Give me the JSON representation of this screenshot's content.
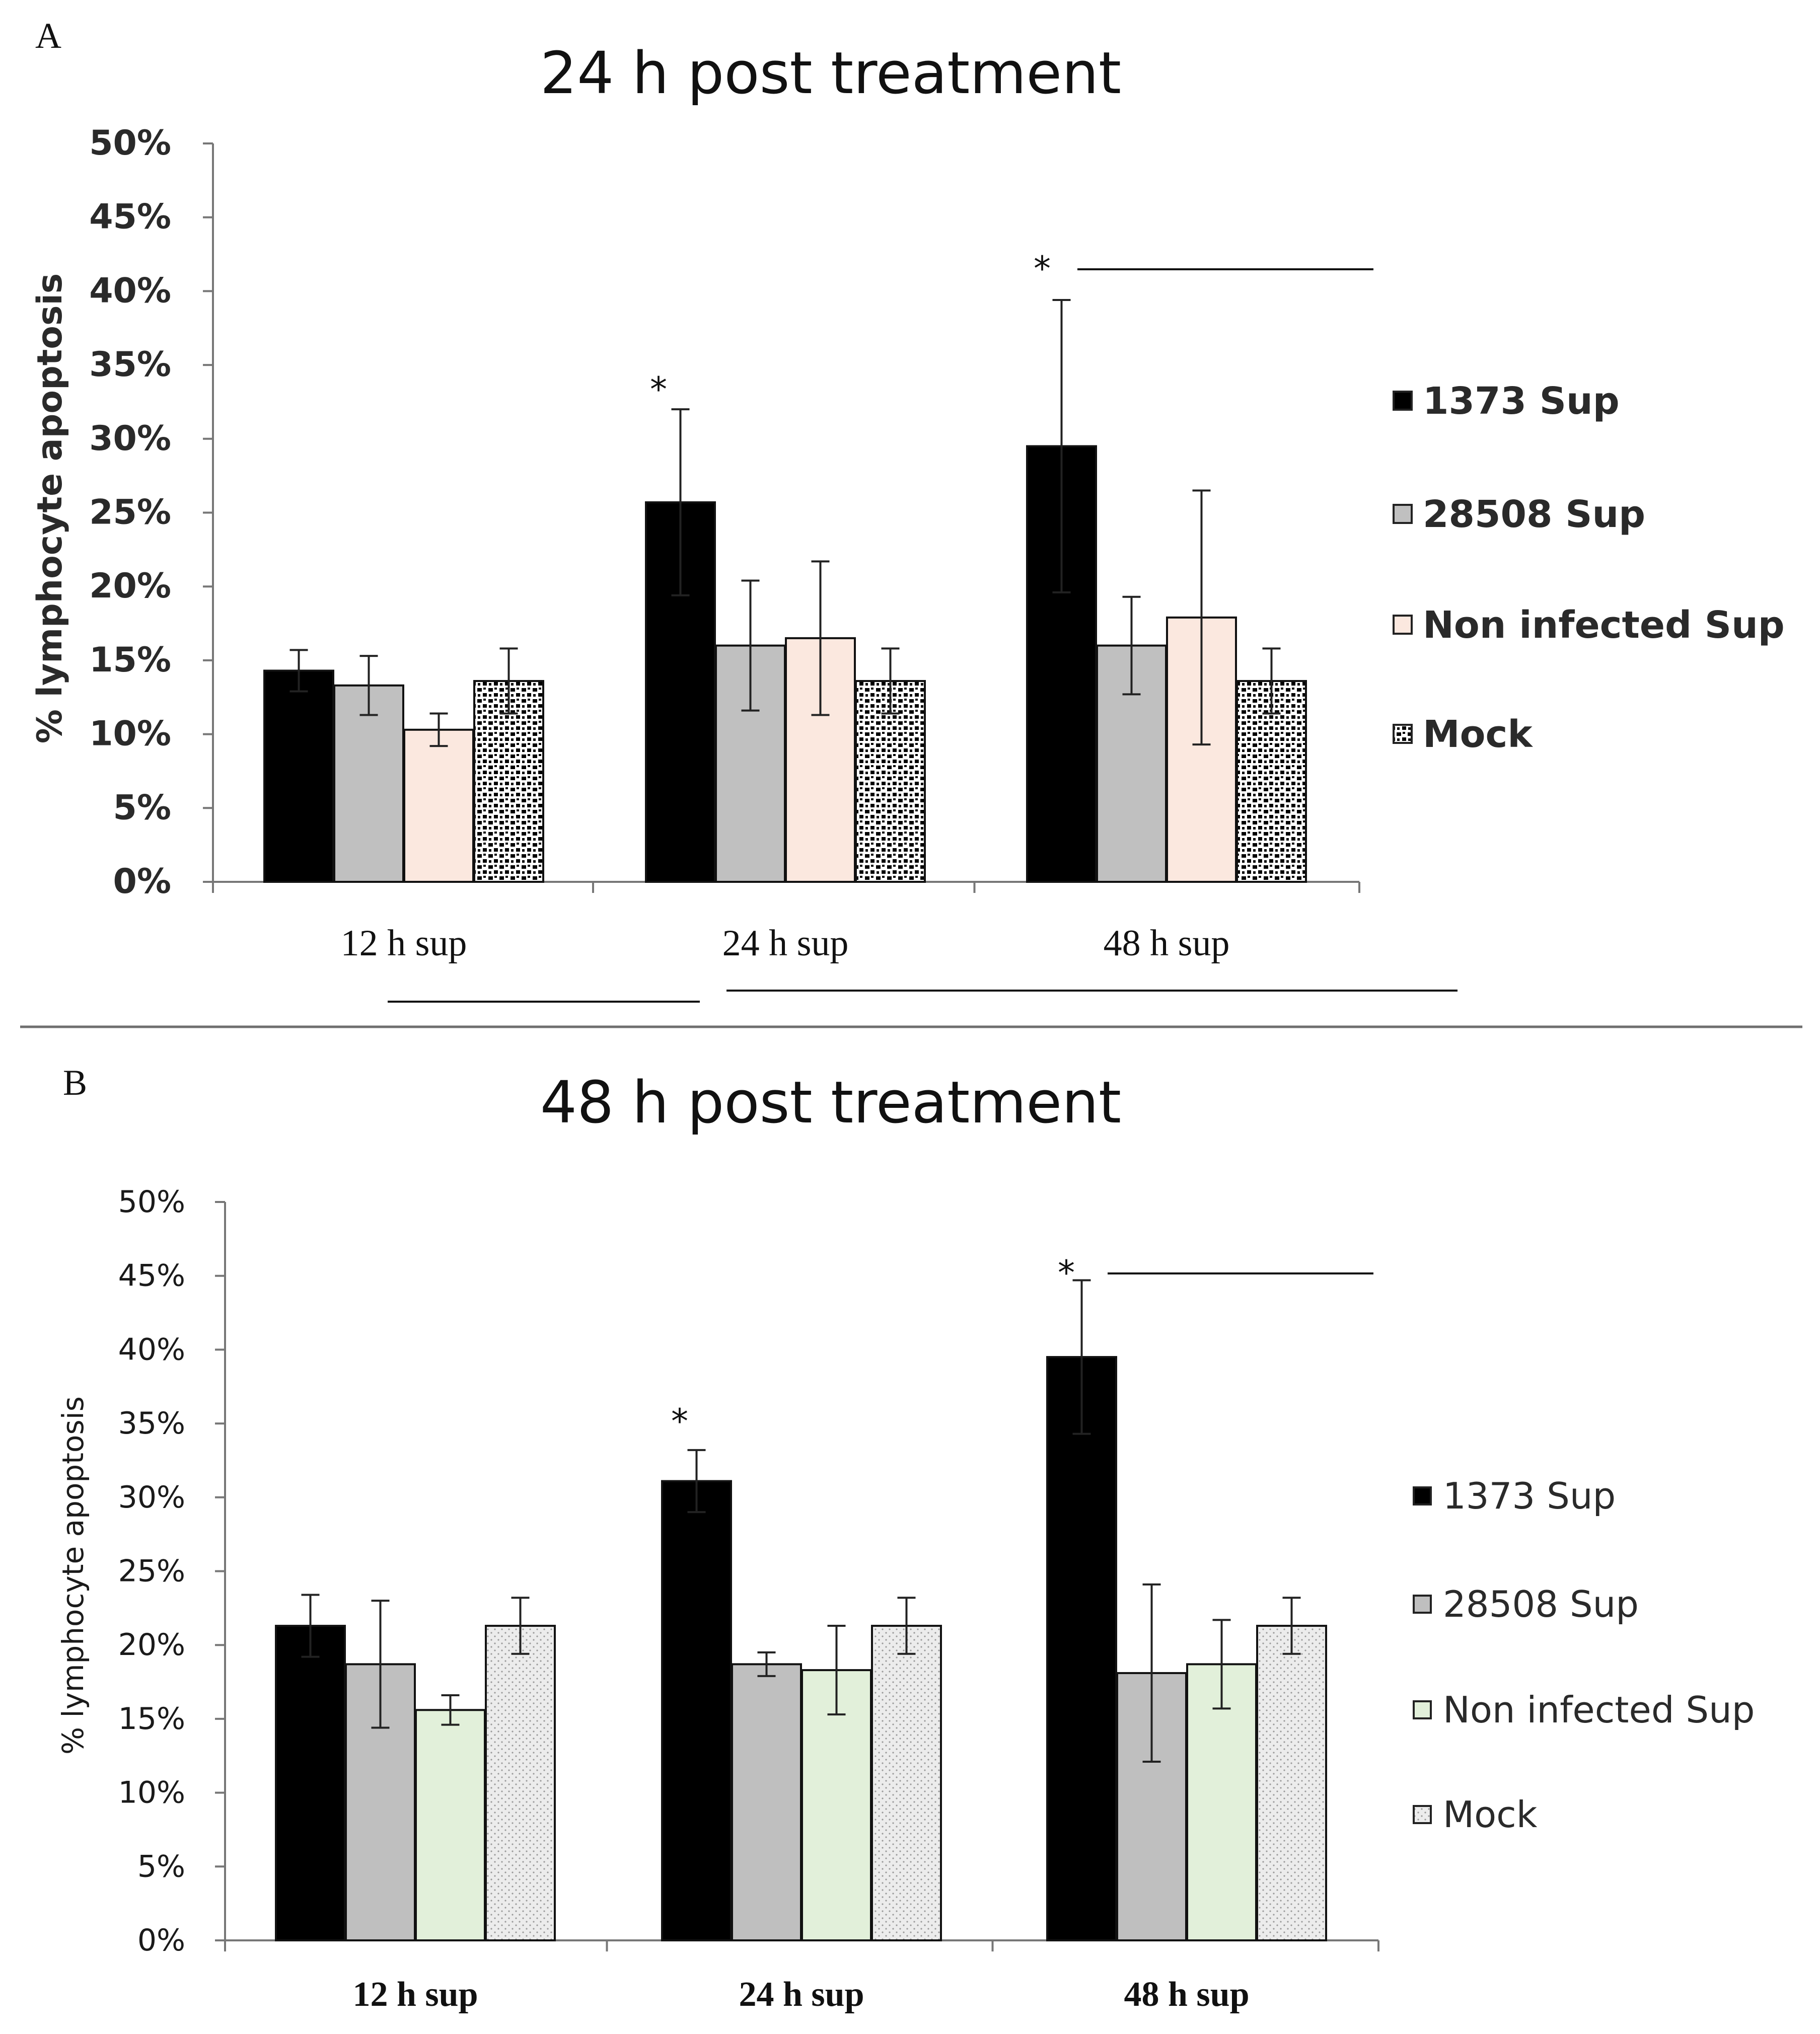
{
  "chart_data": [
    {
      "panel_label": "A",
      "type": "bar",
      "title": "24 h post treatment",
      "xlabel": "",
      "ylabel": "% lymphocyte apoptosis",
      "ylim": [
        0,
        50
      ],
      "y_ticks": [
        "0%",
        "5%",
        "10%",
        "15%",
        "20%",
        "25%",
        "30%",
        "35%",
        "40%",
        "45%",
        "50%"
      ],
      "categories": [
        "12 h sup",
        "24 h sup",
        "48 h sup"
      ],
      "series": [
        {
          "name": "1373 Sup",
          "values": [
            14.3,
            25.7,
            29.5
          ],
          "errors": [
            1.4,
            6.3,
            9.9
          ],
          "color": "#000000"
        },
        {
          "name": "28508 Sup",
          "values": [
            13.3,
            16.0,
            16.0
          ],
          "errors": [
            2.0,
            4.4,
            3.3
          ],
          "color": "#c0c0c0"
        },
        {
          "name": "Non infected Sup",
          "values": [
            10.3,
            16.5,
            17.9
          ],
          "errors": [
            1.1,
            5.2,
            8.6
          ],
          "color": "#fbe8df"
        },
        {
          "name": "Mock",
          "values": [
            13.6,
            13.6,
            13.6
          ],
          "errors": [
            2.2,
            2.2,
            2.2
          ],
          "color": "#ffffff",
          "pattern": "dots"
        }
      ],
      "annotations": [
        {
          "text": "*",
          "category": "24 h sup"
        },
        {
          "text": "*",
          "category": "48 h sup"
        }
      ],
      "legend_position": "right"
    },
    {
      "panel_label": "B",
      "type": "bar",
      "title": "48 h post treatment",
      "xlabel": "",
      "ylabel": "% lymphocyte apoptosis",
      "ylim": [
        0,
        50
      ],
      "y_ticks": [
        "0%",
        "5%",
        "10%",
        "15%",
        "20%",
        "25%",
        "30%",
        "35%",
        "40%",
        "45%",
        "50%"
      ],
      "categories": [
        "12 h sup",
        "24 h sup",
        "48 h sup"
      ],
      "series": [
        {
          "name": "1373 Sup",
          "values": [
            21.3,
            31.1,
            39.5
          ],
          "errors": [
            2.1,
            2.1,
            5.2
          ],
          "color": "#000000"
        },
        {
          "name": "28508 Sup",
          "values": [
            18.7,
            18.7,
            18.1
          ],
          "errors": [
            4.3,
            0.8,
            6.0
          ],
          "color": "#bfbfbf"
        },
        {
          "name": "Non infected Sup",
          "values": [
            15.6,
            18.3,
            18.7
          ],
          "errors": [
            1.0,
            3.0,
            3.0
          ],
          "color": "#e2f0da"
        },
        {
          "name": "Mock",
          "values": [
            21.3,
            21.3,
            21.3
          ],
          "errors": [
            1.9,
            1.9,
            1.9
          ],
          "color": "#ececec",
          "pattern": "fine-dots"
        }
      ],
      "annotations": [
        {
          "text": "*",
          "category": "24 h sup"
        },
        {
          "text": "*",
          "category": "48 h sup"
        }
      ],
      "legend_position": "right"
    }
  ]
}
